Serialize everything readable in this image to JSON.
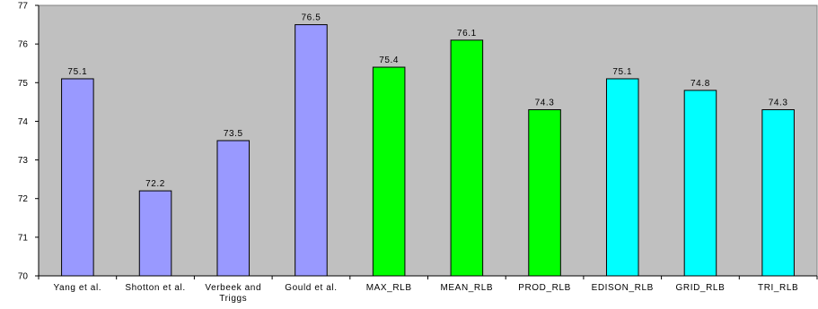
{
  "chart_data": {
    "type": "bar",
    "categories": [
      "Yang et al.",
      "Shotton et al.",
      "Verbeek and Triggs",
      "Gould et al.",
      "MAX_RLB",
      "MEAN_RLB",
      "PROD_RLB",
      "EDISON_RLB",
      "GRID_RLB",
      "TRI_RLB"
    ],
    "values": [
      75.1,
      72.2,
      73.5,
      76.5,
      75.4,
      76.1,
      74.3,
      75.1,
      74.8,
      74.3
    ],
    "bar_colors": [
      "#9999ff",
      "#9999ff",
      "#9999ff",
      "#9999ff",
      "#00ff00",
      "#00ff00",
      "#00ff00",
      "#00ffff",
      "#00ffff",
      "#00ffff"
    ],
    "ylim": [
      70,
      77
    ],
    "yticks": [
      70,
      71,
      72,
      73,
      74,
      75,
      76,
      77
    ],
    "grid": false,
    "plot_background": "#c0c0c0",
    "data_labels": true
  }
}
